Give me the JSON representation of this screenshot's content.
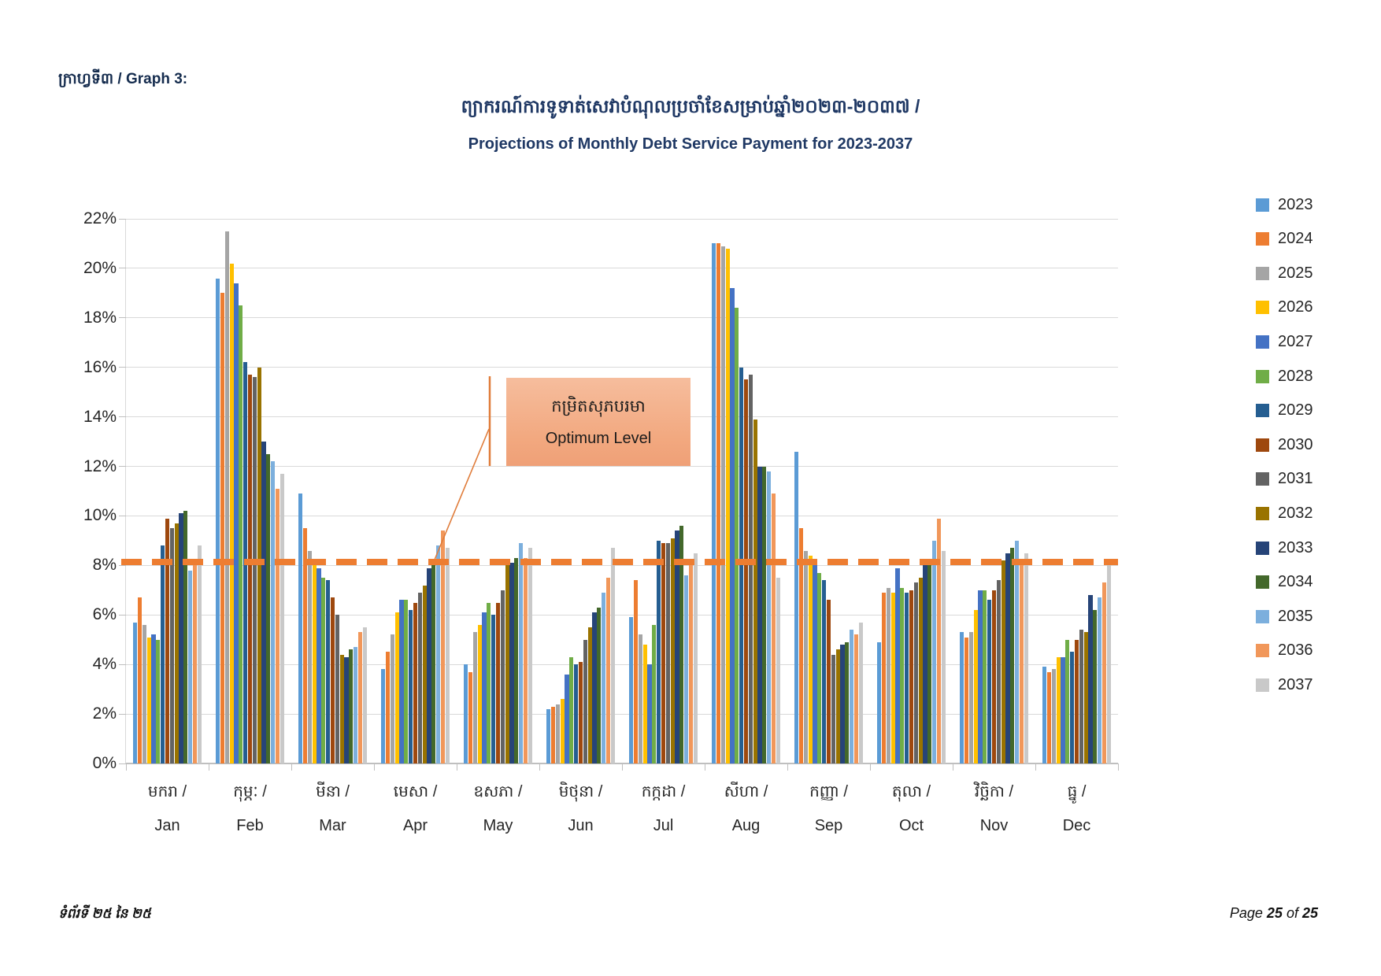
{
  "page": {
    "header_label": "ក្រាហ្វទី៣ / Graph 3:",
    "title_khmer": "ព្យាករណ៍ការទូទាត់សេវាបំណុលប្រចាំខែសម្រាប់ឆ្នាំ២០២៣-២០៣៧ /",
    "title_english": "Projections of Monthly Debt Service Payment for 2023-2037",
    "footer_left": "ទំព័រទី ២៥ នៃ ២៥",
    "footer_right": {
      "word_page": "Page",
      "current_page": "25",
      "word_of": "of",
      "total_pages": "25"
    }
  },
  "annotation": {
    "line1_khmer": "កម្រិតសុភបរមា",
    "line2_english": "Optimum Level"
  },
  "chart_data": {
    "type": "bar",
    "title": "Projections of Monthly Debt Service Payment for 2023-2037",
    "title_khmer": "ព្យាករណ៍ការទូទាត់សេវាបំណុលប្រចាំខែសម្រាប់ឆ្នាំ២០២៣-២០៣៧ /",
    "ylabel": "",
    "xlabel": "",
    "ylim": [
      0,
      22
    ],
    "ytick_step": 2,
    "ytick_suffix": "%",
    "grid": true,
    "legend_position": "right",
    "reference_line": {
      "label_khmer": "កម្រិតសុភបរមា",
      "label_english": "Optimum Level",
      "value": 8.15,
      "color": "#ED7D31",
      "style": "dashed"
    },
    "categories_khmer": [
      "មករា /",
      "កុម្ភៈ /",
      "មីនា /",
      "មេសា /",
      "ឧសភា /",
      "មិថុនា /",
      "កក្កដា /",
      "សីហា /",
      "កញ្ញា /",
      "តុលា /",
      "វិច្ឆិកា /",
      "ធ្នូ /"
    ],
    "categories": [
      "Jan",
      "Feb",
      "Mar",
      "Apr",
      "May",
      "Jun",
      "Jul",
      "Aug",
      "Sep",
      "Oct",
      "Nov",
      "Dec"
    ],
    "series": [
      {
        "name": "2023",
        "color": "#5B9BD5",
        "values": [
          5.7,
          19.6,
          10.9,
          3.8,
          4.0,
          2.2,
          5.9,
          21.0,
          12.6,
          4.9,
          5.3,
          3.9
        ]
      },
      {
        "name": "2024",
        "color": "#ED7D31",
        "values": [
          6.7,
          19.0,
          9.5,
          4.5,
          3.7,
          2.3,
          7.4,
          21.0,
          9.5,
          6.9,
          5.1,
          3.7
        ]
      },
      {
        "name": "2025",
        "color": "#A5A5A5",
        "values": [
          5.6,
          21.5,
          8.6,
          5.2,
          5.3,
          2.4,
          5.2,
          20.9,
          8.6,
          7.1,
          5.3,
          3.8
        ]
      },
      {
        "name": "2026",
        "color": "#FFC000",
        "values": [
          5.1,
          20.2,
          8.2,
          6.1,
          5.6,
          2.6,
          4.8,
          20.8,
          8.4,
          6.9,
          6.2,
          4.3
        ]
      },
      {
        "name": "2027",
        "color": "#4472C4",
        "values": [
          5.2,
          19.4,
          7.9,
          6.6,
          6.1,
          3.6,
          4.0,
          19.2,
          8.1,
          7.9,
          7.0,
          4.3
        ]
      },
      {
        "name": "2028",
        "color": "#70AD47",
        "values": [
          5.0,
          18.5,
          7.5,
          6.6,
          6.5,
          4.3,
          5.6,
          18.4,
          7.7,
          7.1,
          7.0,
          5.0
        ]
      },
      {
        "name": "2029",
        "color": "#255E91",
        "values": [
          8.8,
          16.2,
          7.4,
          6.2,
          6.0,
          4.0,
          9.0,
          16.0,
          7.4,
          6.9,
          6.6,
          4.5
        ]
      },
      {
        "name": "2030",
        "color": "#9E480E",
        "values": [
          9.9,
          15.7,
          6.7,
          6.5,
          6.5,
          4.1,
          8.9,
          15.5,
          6.6,
          7.0,
          7.0,
          5.0
        ]
      },
      {
        "name": "2031",
        "color": "#636363",
        "values": [
          9.5,
          15.6,
          6.0,
          6.9,
          7.0,
          5.0,
          8.9,
          15.7,
          4.4,
          7.3,
          7.4,
          5.4
        ]
      },
      {
        "name": "2032",
        "color": "#997300",
        "values": [
          9.7,
          16.0,
          4.4,
          7.2,
          8.0,
          5.5,
          9.1,
          13.9,
          4.6,
          7.5,
          8.2,
          5.3
        ]
      },
      {
        "name": "2033",
        "color": "#264478",
        "values": [
          10.1,
          13.0,
          4.3,
          7.9,
          8.1,
          6.1,
          9.4,
          12.0,
          4.8,
          8.1,
          8.5,
          6.8
        ]
      },
      {
        "name": "2034",
        "color": "#43682B",
        "values": [
          10.2,
          12.5,
          4.6,
          8.0,
          8.3,
          6.3,
          9.6,
          12.0,
          4.9,
          8.2,
          8.7,
          6.2
        ]
      },
      {
        "name": "2035",
        "color": "#7CAFDD",
        "values": [
          7.8,
          12.2,
          4.7,
          8.8,
          8.9,
          6.9,
          7.6,
          11.8,
          5.4,
          9.0,
          9.0,
          6.7
        ]
      },
      {
        "name": "2036",
        "color": "#F1975A",
        "values": [
          8.0,
          11.1,
          5.3,
          9.4,
          8.3,
          7.5,
          8.2,
          10.9,
          5.2,
          9.9,
          8.1,
          7.3
        ]
      },
      {
        "name": "2037",
        "color": "#C9C9C9",
        "values": [
          8.8,
          11.7,
          5.5,
          8.7,
          8.7,
          8.7,
          8.5,
          7.5,
          5.7,
          8.6,
          8.5,
          8.2
        ]
      }
    ]
  }
}
